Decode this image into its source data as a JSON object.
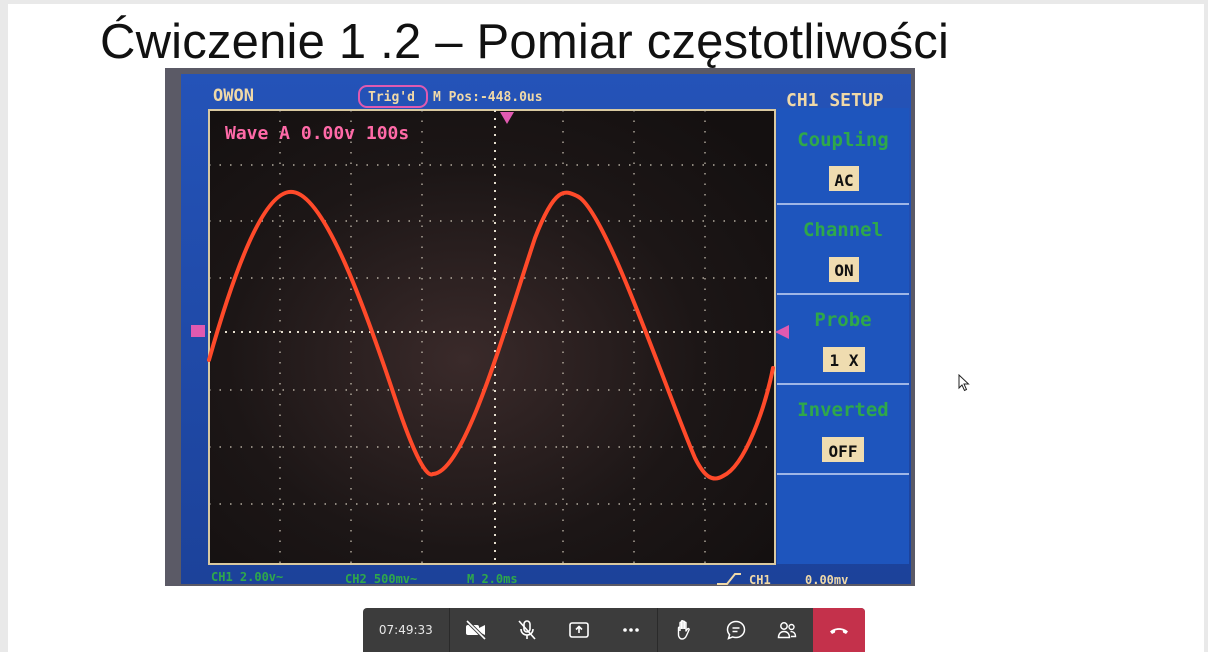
{
  "slide": {
    "title": "Ćwiczenie 1 .2 – Pomiar częstotliwości"
  },
  "scope": {
    "brand": "OWON",
    "trigger_status": "Trig'd",
    "m_pos": "M Pos:-448.0us",
    "menu_title": "CH1 SETUP",
    "wave_label": "Wave A 0.00v 100s",
    "menu": [
      {
        "label": "Coupling",
        "value": "AC"
      },
      {
        "label": "Channel",
        "value": "ON"
      },
      {
        "label": "Probe",
        "value": "1 X"
      },
      {
        "label": "Inverted",
        "value": "OFF"
      }
    ],
    "status": {
      "ch1": "CH1 2.00v~",
      "ch2": "CH2 500mv~",
      "timebase": "M 2.0ms",
      "trig_source": "CH1",
      "trig_level": "0.00mv"
    },
    "colors": {
      "screen_bg": "#1b1515",
      "frame": "#1f4fae",
      "trace": "#ff4a2a",
      "menu_text": "#2fa84a",
      "header_text": "#f0d9a8"
    }
  },
  "toolbar": {
    "time": "07:49:33",
    "buttons": [
      {
        "name": "camera-off",
        "icon": "video-off-icon"
      },
      {
        "name": "mic-off",
        "icon": "mic-off-icon"
      },
      {
        "name": "share",
        "icon": "share-screen-icon"
      },
      {
        "name": "more",
        "icon": "more-icon"
      },
      {
        "name": "raise-hand",
        "icon": "hand-icon"
      },
      {
        "name": "chat",
        "icon": "chat-icon"
      },
      {
        "name": "participants",
        "icon": "people-icon"
      },
      {
        "name": "hang-up",
        "icon": "hangup-icon"
      }
    ]
  }
}
